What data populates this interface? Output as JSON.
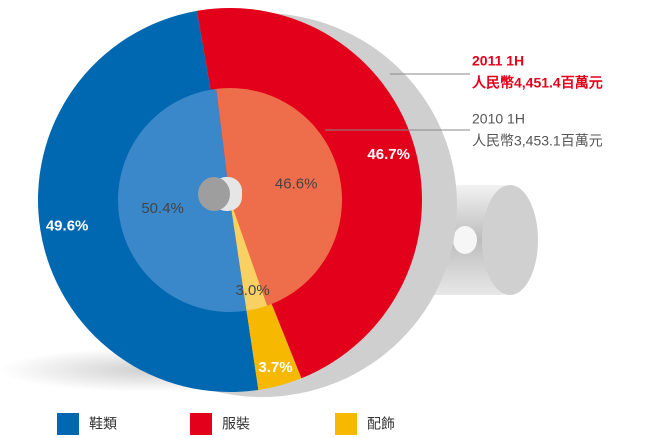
{
  "chart_data": {
    "type": "pie",
    "categories": [
      "鞋類",
      "服裝",
      "配飾"
    ],
    "series": [
      {
        "name": "2011 1H",
        "note": "人民幣4,451.4百萬元",
        "colors": [
          "#0067b1",
          "#e2001a",
          "#f6b800"
        ],
        "values": [
          49.6,
          46.7,
          3.7
        ],
        "value_labels": [
          "49.6%",
          "46.7%",
          "3.7%"
        ]
      },
      {
        "name": "2010 1H",
        "note": "人民幣3,453.1百萬元",
        "colors": [
          "#3a88c9",
          "#ee6d4b",
          "#f9d064"
        ],
        "values": [
          50.4,
          46.6,
          3.0
        ],
        "value_labels": [
          "50.4%",
          "46.6%",
          "3.0%"
        ]
      }
    ]
  }
}
